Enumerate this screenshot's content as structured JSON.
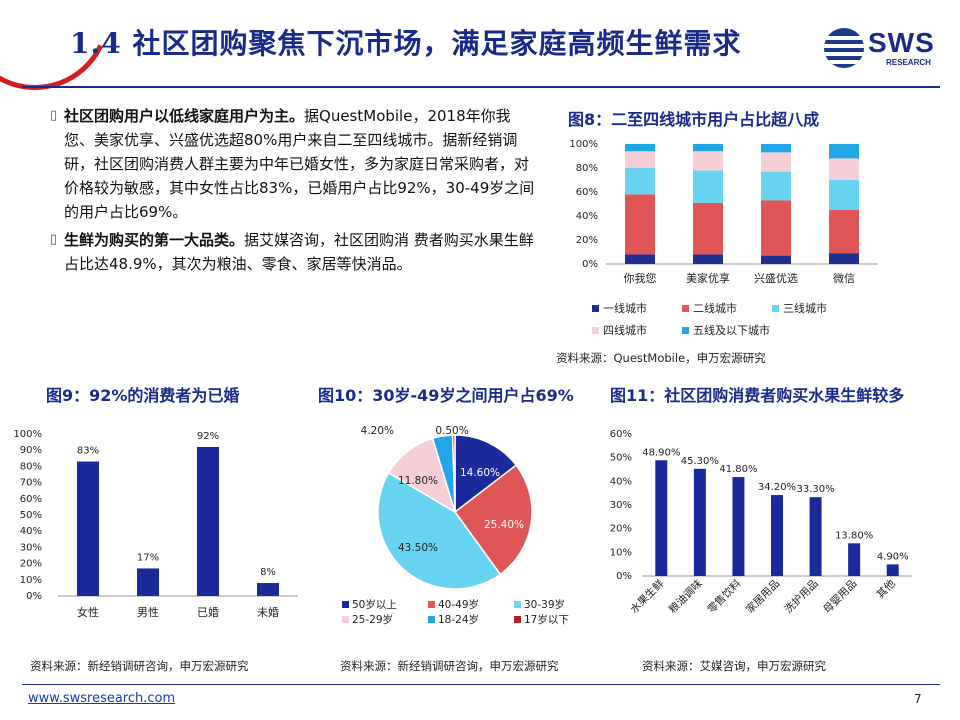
{
  "header": {
    "title": "1.4 社区团购聚焦下沉市场，满足家庭高频生鲜需求"
  },
  "logo": {
    "text": "SWS",
    "subtext": "RESEARCH"
  },
  "text": {
    "bullet_icon": "bullet-icon",
    "p1_bold": "社区团购用户以低线家庭用户为主。",
    "p1_body": "据QuestMobile，2018年你我您、美家优享、兴盛优选超80%用户来自二至四线城市。据新经销调研，社区团购消费人群主要为中年已婚女性，多为家庭日常采购者，对价格较为敏感，其中女性占比83%，已婚用户占比92%，30-49岁之间的用户占比69%。",
    "p2_bold": "生鲜为购买的第一大品类。",
    "p2_body": "据艾媒咨询，社区团购消 费者购买水果生鲜占比达48.9%，其次为粮油、零食、家居等快消品。"
  },
  "figures": {
    "fig8_title": "图8：二至四线城市用户占比超八成",
    "fig8_source": "资料来源：QuestMobile，申万宏源研究",
    "fig9_title": "图9：92%的消费者为已婚",
    "fig9_source": "资料来源：新经销调研咨询，申万宏源研究",
    "fig10_title": "图10：30岁-49岁之间用户占69%",
    "fig10_source": "资料来源：新经销调研咨询，申万宏源研究",
    "fig11_title": "图11：社区团购消费者购买水果生鲜较多",
    "fig11_source": "资料来源：艾媒咨询，申万宏源研究"
  },
  "chart_data": [
    {
      "type": "bar",
      "stacked": true,
      "categories": [
        "你我您",
        "美家优享",
        "兴盛优选",
        "微信"
      ],
      "series": [
        {
          "name": "一线城市",
          "color": "#1f2f8f",
          "values": [
            8,
            8,
            7,
            9
          ]
        },
        {
          "name": "二线城市",
          "color": "#e05555",
          "values": [
            50,
            43,
            46,
            36
          ]
        },
        {
          "name": "三线城市",
          "color": "#69d3f2",
          "values": [
            22,
            27,
            24,
            25
          ]
        },
        {
          "name": "四线城市",
          "color": "#f6cfd6",
          "values": [
            14,
            16,
            16,
            18
          ]
        },
        {
          "name": "五线及以下城市",
          "color": "#21a6e8",
          "values": [
            6,
            6,
            7,
            12
          ]
        }
      ],
      "yticks": [
        "0%",
        "20%",
        "40%",
        "60%",
        "80%",
        "100%"
      ],
      "ylim": [
        0,
        100
      ]
    },
    {
      "type": "bar",
      "categories": [
        "女性",
        "男性",
        "已婚",
        "未婚"
      ],
      "values": [
        83,
        17,
        92,
        8
      ],
      "value_labels": [
        "83%",
        "17%",
        "92%",
        "8%"
      ],
      "color": "#1a2a9a",
      "yticks": [
        "0%",
        "10%",
        "20%",
        "30%",
        "40%",
        "50%",
        "60%",
        "70%",
        "80%",
        "90%",
        "100%"
      ],
      "ylim": [
        0,
        100
      ]
    },
    {
      "type": "pie",
      "slices": [
        {
          "name": "50岁以上",
          "value": 14.6,
          "label": "14.60%",
          "color": "#1a2a9a"
        },
        {
          "name": "40-49岁",
          "value": 25.4,
          "label": "25.40%",
          "color": "#e05555"
        },
        {
          "name": "30-39岁",
          "value": 43.5,
          "label": "43.50%",
          "color": "#69d3f2"
        },
        {
          "name": "25-29岁",
          "value": 11.8,
          "label": "11.80%",
          "color": "#f6cfd6"
        },
        {
          "name": "18-24岁",
          "value": 4.2,
          "label": "4.20%",
          "color": "#21a6e8"
        },
        {
          "name": "17岁以下",
          "value": 0.5,
          "label": "0.50%",
          "color": "#b0202a"
        }
      ]
    },
    {
      "type": "bar",
      "categories": [
        "水果生鲜",
        "粮油调味",
        "零售饮料",
        "家居用品",
        "洗护用品",
        "母婴用品",
        "其他"
      ],
      "values": [
        48.9,
        45.3,
        41.8,
        34.2,
        33.3,
        13.8,
        4.9
      ],
      "value_labels": [
        "48.90%",
        "45.30%",
        "41.80%",
        "34.20%",
        "33.30%",
        "13.80%",
        "4.90%"
      ],
      "color": "#1a2a9a",
      "yticks": [
        "0%",
        "10%",
        "20%",
        "30%",
        "40%",
        "50%",
        "60%"
      ],
      "ylim": [
        0,
        60
      ]
    }
  ],
  "footer": {
    "url": "www.swsresearch.com",
    "page": "7"
  }
}
